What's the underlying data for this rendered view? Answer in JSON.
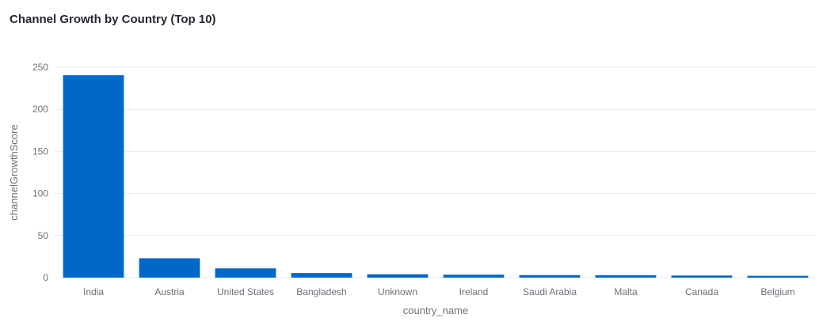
{
  "title": "Channel Growth by Country (Top 10)",
  "chart_data": {
    "type": "bar",
    "title": "Channel Growth by Country (Top 10)",
    "xlabel": "country_name",
    "ylabel": "channelGrowthScore",
    "categories": [
      "India",
      "Austria",
      "United States",
      "Bangladesh",
      "Unknown",
      "Ireland",
      "Saudi Arabia",
      "Malta",
      "Canada",
      "Belgium"
    ],
    "values": [
      240.5,
      23,
      11,
      5.5,
      4,
      3.5,
      3,
      2.8,
      2.5,
      2.2
    ],
    "ylim": [
      0,
      250
    ],
    "yticks": [
      0,
      50,
      100,
      150,
      200,
      250
    ],
    "grid": true,
    "bar_color": "#0068c9",
    "grid_color": "#e6e9ef",
    "text_color": "#6e7079"
  }
}
